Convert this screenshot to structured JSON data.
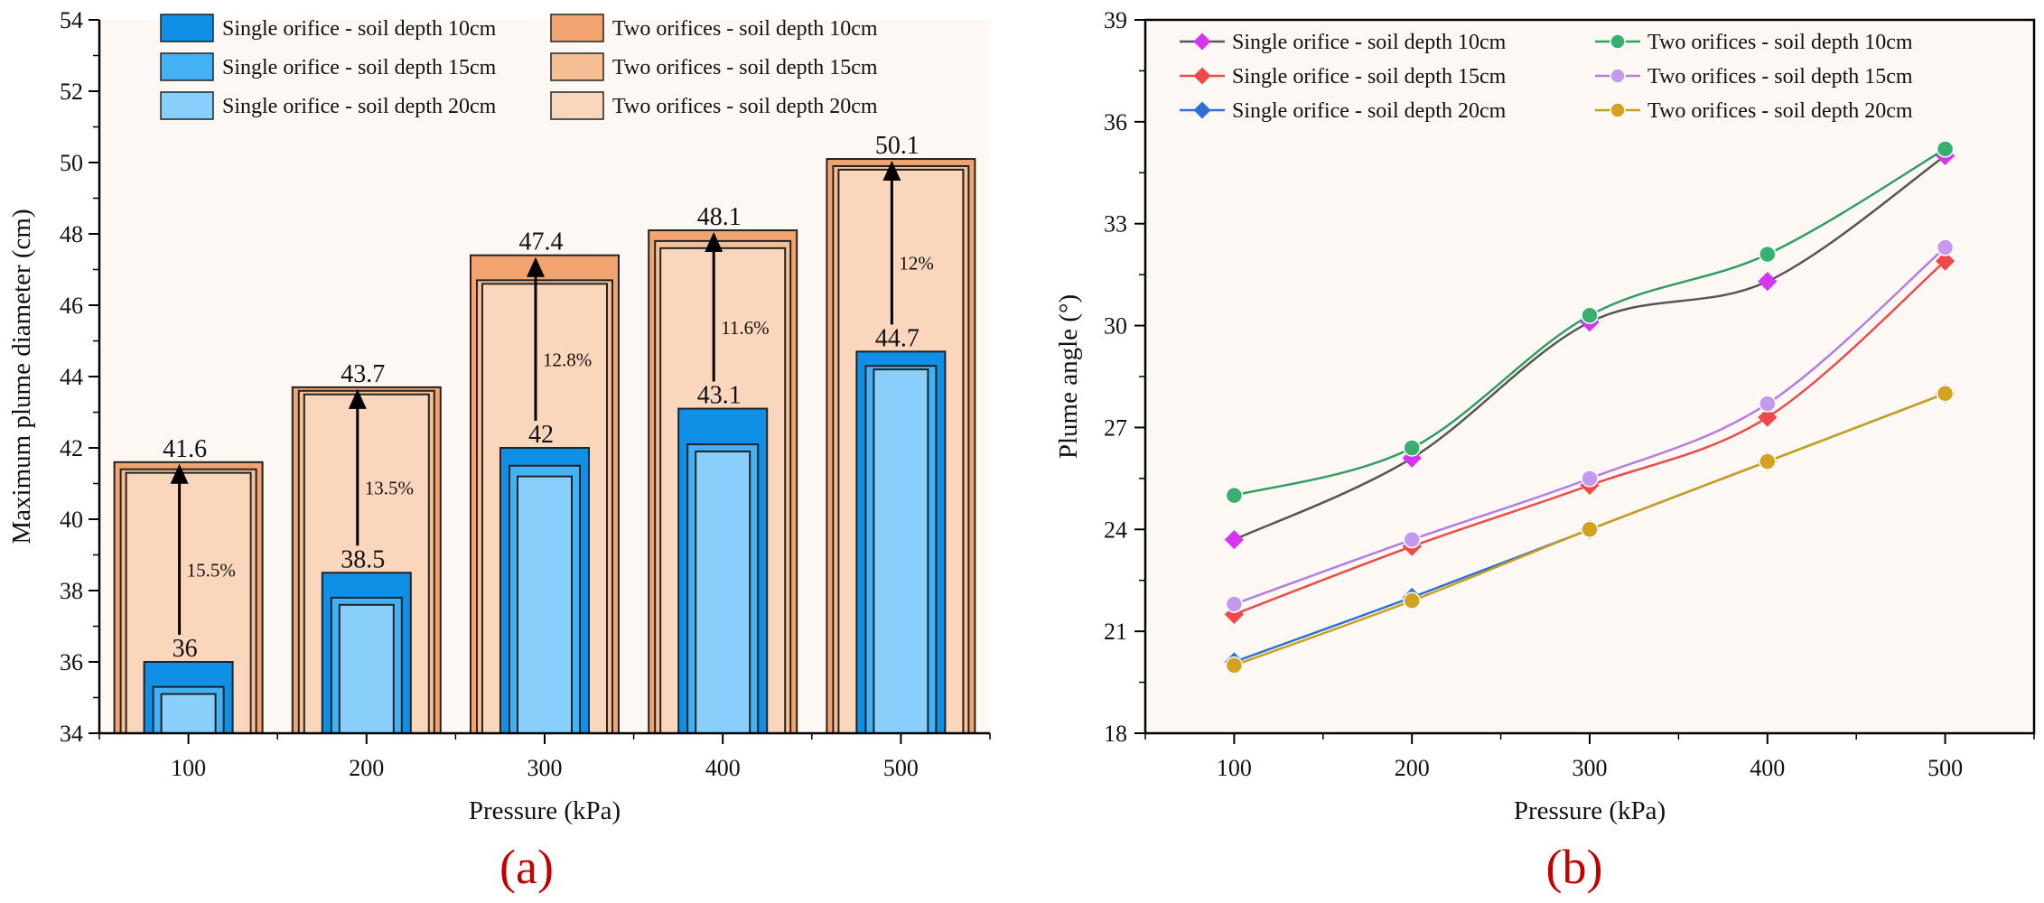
{
  "chart_data": [
    {
      "panel_label": "(a)",
      "type": "bar",
      "xlabel": "Pressure (kPa)",
      "ylabel": "Maximum plume diameter (cm)",
      "ylim": [
        34,
        54
      ],
      "yticks": [
        34,
        36,
        38,
        40,
        42,
        44,
        46,
        48,
        50,
        52,
        54
      ],
      "categories": [
        "100",
        "200",
        "300",
        "400",
        "500"
      ],
      "series": [
        {
          "name": "Single orifice - soil depth 10cm",
          "color": "#0f8fe6",
          "values": [
            36.0,
            38.5,
            42.0,
            43.1,
            44.7
          ]
        },
        {
          "name": "Single orifice - soil depth 15cm",
          "color": "#42b2f5",
          "values": [
            35.3,
            37.8,
            41.5,
            42.1,
            44.3
          ]
        },
        {
          "name": "Single orifice - soil depth 20cm",
          "color": "#88d0fb",
          "values": [
            35.1,
            37.6,
            41.2,
            41.9,
            44.2
          ]
        },
        {
          "name": "Two orifices - soil depth 10cm",
          "color": "#f1a470",
          "values": [
            41.6,
            43.7,
            47.4,
            48.1,
            50.1
          ]
        },
        {
          "name": "Two orifices - soil depth 15cm",
          "color": "#f6bf96",
          "values": [
            41.4,
            43.6,
            46.7,
            47.8,
            49.9
          ]
        },
        {
          "name": "Two orifices - soil depth 20cm",
          "color": "#fad6bd",
          "values": [
            41.3,
            43.5,
            46.6,
            47.6,
            49.8
          ]
        }
      ],
      "data_labels": {
        "single": [
          "36",
          "38.5",
          "42",
          "43.1",
          "44.7"
        ],
        "two": [
          "41.6",
          "43.7",
          "47.4",
          "48.1",
          "50.1"
        ]
      },
      "increase_labels": [
        "15.5%",
        "13.5%",
        "12.8%",
        "11.6%",
        "12%"
      ],
      "legend_position": "top"
    },
    {
      "panel_label": "(b)",
      "type": "line",
      "xlabel": "Pressure (kPa)",
      "ylabel": "Plume angle (°)",
      "x": [
        100,
        200,
        300,
        400,
        500
      ],
      "xlim": [
        50,
        550
      ],
      "ylim": [
        18,
        39
      ],
      "yticks": [
        18,
        21,
        24,
        27,
        30,
        33,
        36,
        39
      ],
      "series": [
        {
          "name": "Single orifice - soil depth 10cm",
          "line_color": "#555555",
          "marker": "diamond",
          "marker_color": "#d633f2",
          "values": [
            23.7,
            26.1,
            30.1,
            31.3,
            35.0
          ]
        },
        {
          "name": "Single orifice - soil depth 15cm",
          "line_color": "#ee4a4a",
          "marker": "diamond",
          "marker_color": "#ee4a4a",
          "values": [
            21.5,
            23.5,
            25.3,
            27.3,
            31.9
          ]
        },
        {
          "name": "Single orifice - soil depth 20cm",
          "line_color": "#2f6fd6",
          "marker": "diamond",
          "marker_color": "#2f6fd6",
          "values": [
            20.1,
            22.0,
            24.0,
            26.0,
            28.0
          ]
        },
        {
          "name": "Two orifices - soil depth 10cm",
          "line_color": "#2e9e62",
          "marker": "circle",
          "marker_color": "#36b06e",
          "values": [
            25.0,
            26.4,
            30.3,
            32.1,
            35.2
          ]
        },
        {
          "name": "Two orifices - soil depth 15cm",
          "line_color": "#b57ce2",
          "marker": "circle",
          "marker_color": "#c59aee",
          "values": [
            21.8,
            23.7,
            25.5,
            27.7,
            32.3
          ]
        },
        {
          "name": "Two orifices - soil depth 20cm",
          "line_color": "#c8a01a",
          "marker": "circle",
          "marker_color": "#d4a21e",
          "values": [
            20.0,
            21.9,
            24.0,
            26.0,
            28.0
          ]
        }
      ],
      "legend_position": "top"
    }
  ]
}
